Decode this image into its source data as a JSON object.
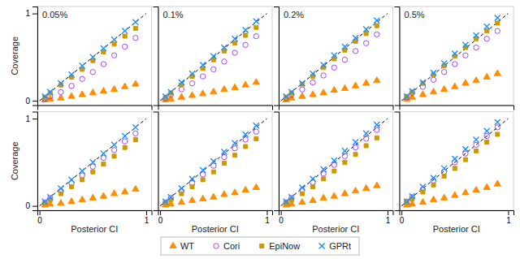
{
  "chart_data": [
    {
      "type": "scatter",
      "title": "0.05%",
      "ylabel": "Coverage",
      "tick_labels": "y",
      "legend": "bottom",
      "x": [
        0.05,
        0.1,
        0.2,
        0.3,
        0.4,
        0.5,
        0.6,
        0.7,
        0.8,
        0.9
      ],
      "xlim": [
        -0.02,
        1.05
      ],
      "ylim": [
        -0.05,
        1.08
      ],
      "xticks": [
        0,
        1
      ],
      "yticks": [
        0,
        1
      ],
      "series": [
        {
          "name": "WT",
          "color": "#FF8C00",
          "marker": "triangle",
          "values": [
            0.01,
            0.02,
            0.03,
            0.05,
            0.07,
            0.09,
            0.11,
            0.13,
            0.16,
            0.19
          ]
        },
        {
          "name": "Cori",
          "color": "#9933FF",
          "marker": "circle-open",
          "values": [
            0.02,
            0.05,
            0.1,
            0.17,
            0.25,
            0.33,
            0.42,
            0.52,
            0.62,
            0.72
          ]
        },
        {
          "name": "EpiNow",
          "color": "#CC9900",
          "marker": "square",
          "values": [
            0.04,
            0.09,
            0.18,
            0.27,
            0.36,
            0.46,
            0.56,
            0.65,
            0.74,
            0.83
          ]
        },
        {
          "name": "GPRt",
          "color": "#1E90FF",
          "marker": "x",
          "values": [
            0.05,
            0.1,
            0.2,
            0.3,
            0.4,
            0.5,
            0.6,
            0.7,
            0.8,
            0.9
          ]
        },
        {
          "type": "line",
          "color": "#000000",
          "line_style": "dashed",
          "x": [
            0,
            1
          ],
          "values": [
            0,
            1
          ]
        }
      ]
    },
    {
      "type": "scatter",
      "title": "0.1%",
      "tick_labels": false,
      "x": [
        0.05,
        0.1,
        0.2,
        0.3,
        0.4,
        0.5,
        0.6,
        0.7,
        0.8,
        0.9
      ],
      "xlim": [
        -0.02,
        1.05
      ],
      "ylim": [
        -0.05,
        1.08
      ],
      "xticks": [
        0,
        1
      ],
      "yticks": [
        0,
        1
      ],
      "series": [
        {
          "name": "WT",
          "color": "#FF8C00",
          "marker": "triangle",
          "values": [
            0.01,
            0.02,
            0.04,
            0.06,
            0.08,
            0.1,
            0.13,
            0.15,
            0.18,
            0.21
          ]
        },
        {
          "name": "Cori",
          "color": "#9933FF",
          "marker": "circle-open",
          "values": [
            0.03,
            0.07,
            0.13,
            0.2,
            0.28,
            0.36,
            0.45,
            0.55,
            0.64,
            0.74
          ]
        },
        {
          "name": "EpiNow",
          "color": "#CC9900",
          "marker": "square",
          "values": [
            0.04,
            0.09,
            0.18,
            0.28,
            0.37,
            0.47,
            0.57,
            0.66,
            0.75,
            0.84
          ]
        },
        {
          "name": "GPRt",
          "color": "#1E90FF",
          "marker": "x",
          "values": [
            0.05,
            0.1,
            0.21,
            0.31,
            0.41,
            0.51,
            0.61,
            0.71,
            0.81,
            0.91
          ]
        },
        {
          "type": "line",
          "color": "#000000",
          "line_style": "dashed",
          "x": [
            0,
            1
          ],
          "values": [
            0,
            1
          ]
        }
      ]
    },
    {
      "type": "scatter",
      "title": "0.2%",
      "tick_labels": false,
      "x": [
        0.05,
        0.1,
        0.2,
        0.3,
        0.4,
        0.5,
        0.6,
        0.7,
        0.8,
        0.9
      ],
      "xlim": [
        -0.02,
        1.05
      ],
      "ylim": [
        -0.05,
        1.08
      ],
      "xticks": [
        0,
        1
      ],
      "yticks": [
        0,
        1
      ],
      "series": [
        {
          "name": "WT",
          "color": "#FF8C00",
          "marker": "triangle",
          "values": [
            0.01,
            0.03,
            0.05,
            0.07,
            0.09,
            0.12,
            0.14,
            0.17,
            0.2,
            0.23
          ]
        },
        {
          "name": "Cori",
          "color": "#9933FF",
          "marker": "circle-open",
          "values": [
            0.03,
            0.07,
            0.13,
            0.21,
            0.29,
            0.38,
            0.47,
            0.57,
            0.66,
            0.76
          ]
        },
        {
          "name": "EpiNow",
          "color": "#CC9900",
          "marker": "square",
          "values": [
            0.04,
            0.09,
            0.19,
            0.28,
            0.38,
            0.48,
            0.58,
            0.68,
            0.77,
            0.86
          ]
        },
        {
          "name": "GPRt",
          "color": "#1E90FF",
          "marker": "x",
          "values": [
            0.05,
            0.1,
            0.2,
            0.31,
            0.41,
            0.52,
            0.62,
            0.72,
            0.82,
            0.92
          ]
        },
        {
          "type": "line",
          "color": "#000000",
          "line_style": "dashed",
          "x": [
            0,
            1
          ],
          "values": [
            0,
            1
          ]
        }
      ]
    },
    {
      "type": "scatter",
      "title": "0.5%",
      "tick_labels": false,
      "x": [
        0.05,
        0.1,
        0.2,
        0.3,
        0.4,
        0.5,
        0.6,
        0.7,
        0.8,
        0.9
      ],
      "xlim": [
        -0.02,
        1.05
      ],
      "ylim": [
        -0.05,
        1.08
      ],
      "xticks": [
        0,
        1
      ],
      "yticks": [
        0,
        1
      ],
      "series": [
        {
          "name": "WT",
          "color": "#FF8C00",
          "marker": "triangle",
          "values": [
            0.02,
            0.04,
            0.07,
            0.1,
            0.13,
            0.16,
            0.2,
            0.23,
            0.27,
            0.31
          ]
        },
        {
          "name": "Cori",
          "color": "#9933FF",
          "marker": "circle-open",
          "values": [
            0.04,
            0.09,
            0.16,
            0.24,
            0.33,
            0.42,
            0.52,
            0.61,
            0.71,
            0.8
          ]
        },
        {
          "name": "EpiNow",
          "color": "#CC9900",
          "marker": "square",
          "values": [
            0.05,
            0.1,
            0.2,
            0.3,
            0.4,
            0.51,
            0.61,
            0.71,
            0.8,
            0.89
          ]
        },
        {
          "name": "GPRt",
          "color": "#1E90FF",
          "marker": "x",
          "values": [
            0.05,
            0.11,
            0.21,
            0.32,
            0.43,
            0.54,
            0.64,
            0.75,
            0.85,
            0.95
          ]
        },
        {
          "type": "line",
          "color": "#000000",
          "line_style": "dashed",
          "x": [
            0,
            1
          ],
          "values": [
            0,
            1
          ]
        }
      ]
    },
    {
      "type": "scatter",
      "xlabel": "Posterior CI",
      "ylabel": "Coverage",
      "x": [
        0.05,
        0.1,
        0.2,
        0.3,
        0.4,
        0.5,
        0.6,
        0.7,
        0.8,
        0.9
      ],
      "xlim": [
        -0.02,
        1.05
      ],
      "ylim": [
        -0.05,
        1.08
      ],
      "xticks": [
        0,
        1
      ],
      "yticks": [
        0,
        1
      ],
      "series": [
        {
          "name": "WT",
          "color": "#FF8C00",
          "marker": "triangle",
          "values": [
            0.01,
            0.02,
            0.03,
            0.05,
            0.07,
            0.09,
            0.11,
            0.14,
            0.16,
            0.19
          ]
        },
        {
          "name": "Cori",
          "color": "#9933FF",
          "marker": "circle-open",
          "values": [
            0.04,
            0.09,
            0.17,
            0.26,
            0.35,
            0.45,
            0.55,
            0.64,
            0.74,
            0.83
          ]
        },
        {
          "name": "EpiNow",
          "color": "#CC9900",
          "marker": "square",
          "values": [
            0.03,
            0.07,
            0.14,
            0.22,
            0.3,
            0.39,
            0.48,
            0.57,
            0.67,
            0.76
          ]
        },
        {
          "name": "GPRt",
          "color": "#1E90FF",
          "marker": "x",
          "values": [
            0.05,
            0.1,
            0.2,
            0.3,
            0.4,
            0.5,
            0.6,
            0.7,
            0.8,
            0.9
          ]
        },
        {
          "type": "line",
          "color": "#000000",
          "line_style": "dashed",
          "x": [
            0,
            1
          ],
          "values": [
            0,
            1
          ]
        }
      ]
    },
    {
      "type": "scatter",
      "xlabel": "Posterior CI",
      "tick_labels": "x",
      "x": [
        0.05,
        0.1,
        0.2,
        0.3,
        0.4,
        0.5,
        0.6,
        0.7,
        0.8,
        0.9
      ],
      "xlim": [
        -0.02,
        1.05
      ],
      "ylim": [
        -0.05,
        1.08
      ],
      "xticks": [
        0,
        1
      ],
      "yticks": [
        0,
        1
      ],
      "series": [
        {
          "name": "WT",
          "color": "#FF8C00",
          "marker": "triangle",
          "values": [
            0.01,
            0.02,
            0.04,
            0.06,
            0.08,
            0.1,
            0.13,
            0.15,
            0.18,
            0.21
          ]
        },
        {
          "name": "Cori",
          "color": "#9933FF",
          "marker": "circle-open",
          "values": [
            0.04,
            0.09,
            0.17,
            0.26,
            0.36,
            0.46,
            0.56,
            0.66,
            0.76,
            0.85
          ]
        },
        {
          "name": "EpiNow",
          "color": "#CC9900",
          "marker": "square",
          "values": [
            0.03,
            0.07,
            0.14,
            0.22,
            0.3,
            0.39,
            0.49,
            0.58,
            0.68,
            0.77
          ]
        },
        {
          "name": "GPRt",
          "color": "#1E90FF",
          "marker": "x",
          "values": [
            0.05,
            0.1,
            0.2,
            0.31,
            0.41,
            0.51,
            0.62,
            0.72,
            0.82,
            0.92
          ]
        },
        {
          "type": "line",
          "color": "#000000",
          "line_style": "dashed",
          "x": [
            0,
            1
          ],
          "values": [
            0,
            1
          ]
        }
      ]
    },
    {
      "type": "scatter",
      "xlabel": "Posterior CI",
      "tick_labels": "x",
      "x": [
        0.05,
        0.1,
        0.2,
        0.3,
        0.4,
        0.5,
        0.6,
        0.7,
        0.8,
        0.9
      ],
      "xlim": [
        -0.02,
        1.05
      ],
      "ylim": [
        -0.05,
        1.08
      ],
      "xticks": [
        0,
        1
      ],
      "yticks": [
        0,
        1
      ],
      "series": [
        {
          "name": "WT",
          "color": "#FF8C00",
          "marker": "triangle",
          "values": [
            0.01,
            0.02,
            0.04,
            0.06,
            0.09,
            0.11,
            0.14,
            0.17,
            0.2,
            0.23
          ]
        },
        {
          "name": "Cori",
          "color": "#9933FF",
          "marker": "circle-open",
          "values": [
            0.04,
            0.09,
            0.18,
            0.27,
            0.37,
            0.47,
            0.57,
            0.67,
            0.77,
            0.87
          ]
        },
        {
          "name": "EpiNow",
          "color": "#CC9900",
          "marker": "square",
          "values": [
            0.03,
            0.07,
            0.14,
            0.22,
            0.31,
            0.4,
            0.5,
            0.59,
            0.69,
            0.78
          ]
        },
        {
          "name": "GPRt",
          "color": "#1E90FF",
          "marker": "x",
          "values": [
            0.05,
            0.1,
            0.21,
            0.31,
            0.42,
            0.52,
            0.63,
            0.73,
            0.83,
            0.93
          ]
        },
        {
          "type": "line",
          "color": "#000000",
          "line_style": "dashed",
          "x": [
            0,
            1
          ],
          "values": [
            0,
            1
          ]
        }
      ]
    },
    {
      "type": "scatter",
      "xlabel": "Posterior CI",
      "tick_labels": "x",
      "x": [
        0.05,
        0.1,
        0.2,
        0.3,
        0.4,
        0.5,
        0.6,
        0.7,
        0.8,
        0.9
      ],
      "xlim": [
        -0.02,
        1.05
      ],
      "ylim": [
        -0.05,
        1.08
      ],
      "xticks": [
        0,
        1
      ],
      "yticks": [
        0,
        1
      ],
      "series": [
        {
          "name": "WT",
          "color": "#FF8C00",
          "marker": "triangle",
          "values": [
            0.01,
            0.02,
            0.04,
            0.07,
            0.09,
            0.12,
            0.15,
            0.18,
            0.21,
            0.25
          ]
        },
        {
          "name": "Cori",
          "color": "#9933FF",
          "marker": "circle-open",
          "values": [
            0.05,
            0.1,
            0.19,
            0.29,
            0.39,
            0.5,
            0.6,
            0.7,
            0.8,
            0.9
          ]
        },
        {
          "name": "EpiNow",
          "color": "#CC9900",
          "marker": "square",
          "values": [
            0.04,
            0.08,
            0.16,
            0.24,
            0.34,
            0.43,
            0.53,
            0.63,
            0.73,
            0.82
          ]
        },
        {
          "name": "GPRt",
          "color": "#1E90FF",
          "marker": "x",
          "values": [
            0.05,
            0.11,
            0.22,
            0.32,
            0.43,
            0.54,
            0.65,
            0.76,
            0.86,
            0.96
          ]
        },
        {
          "type": "line",
          "color": "#000000",
          "line_style": "dashed",
          "x": [
            0,
            1
          ],
          "values": [
            0,
            1
          ]
        }
      ]
    }
  ]
}
